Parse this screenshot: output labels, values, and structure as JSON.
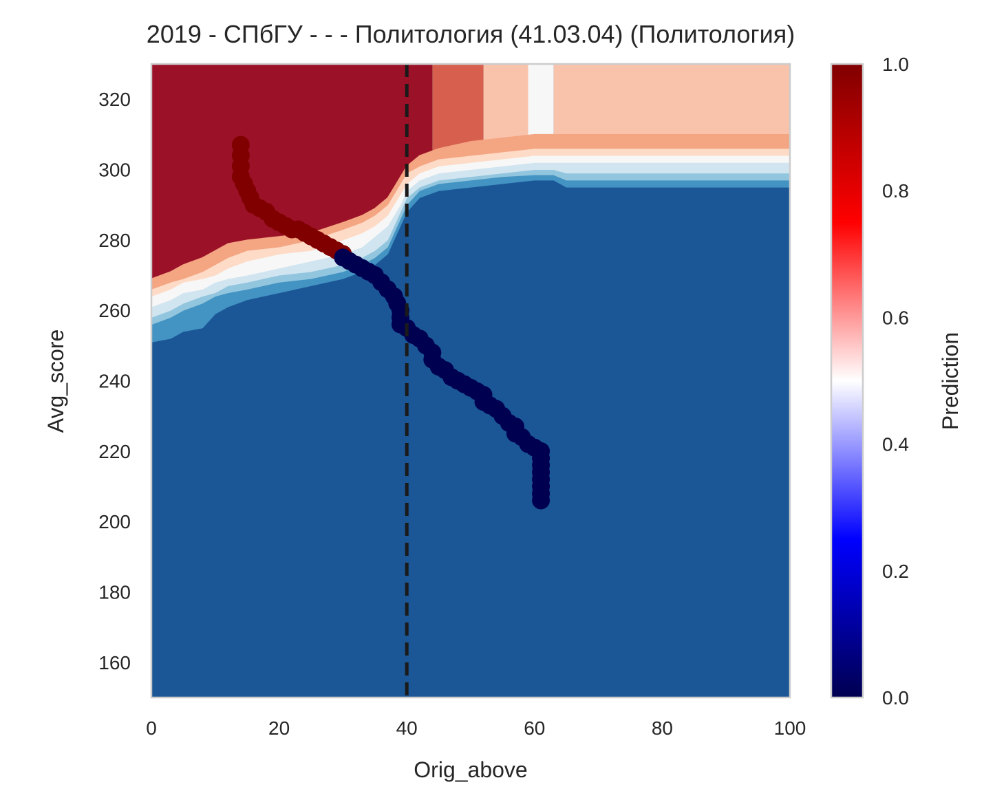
{
  "chart_data": {
    "type": "scatter",
    "title": "2019 - СПбГУ - - - Политология (41.03.04) (Политология)",
    "xlabel": "Orig_above",
    "ylabel": "Avg_score",
    "xlim": [
      0,
      100
    ],
    "ylim": [
      150,
      330
    ],
    "x_ticks": [
      "0",
      "20",
      "40",
      "60",
      "80",
      "100"
    ],
    "y_ticks": [
      "160",
      "180",
      "200",
      "220",
      "240",
      "260",
      "280",
      "300",
      "320"
    ],
    "grid": false,
    "threshold_line": {
      "x": 40,
      "style": "dashed",
      "color": "#1a1a1a"
    },
    "background": {
      "type": "contour",
      "levels": [
        0,
        0.1,
        0.2,
        0.3,
        0.4,
        0.5,
        0.6,
        0.7,
        0.8,
        0.9,
        1.0
      ],
      "boundaries": [
        {
          "color": "#4393c3",
          "points": [
            [
              0,
              251
            ],
            [
              3,
              252
            ],
            [
              5,
              254
            ],
            [
              8,
              255
            ],
            [
              10,
              259
            ],
            [
              12,
              261
            ],
            [
              15,
              263
            ],
            [
              20,
              265
            ],
            [
              25,
              267
            ],
            [
              30,
              269
            ],
            [
              33,
              271
            ],
            [
              35,
              273
            ],
            [
              37,
              276
            ],
            [
              38,
              280
            ],
            [
              39,
              284
            ],
            [
              40,
              288
            ],
            [
              42,
              292
            ],
            [
              45,
              294
            ],
            [
              50,
              295
            ],
            [
              55,
              296
            ],
            [
              60,
              297
            ],
            [
              63,
              297
            ],
            [
              65,
              295
            ],
            [
              80,
              295
            ],
            [
              100,
              295
            ]
          ]
        },
        {
          "color": "#92c5de",
          "points": [
            [
              0,
              256
            ],
            [
              3,
              258
            ],
            [
              5,
              260
            ],
            [
              8,
              262
            ],
            [
              10,
              264
            ],
            [
              12,
              265
            ],
            [
              15,
              266
            ],
            [
              20,
              268
            ],
            [
              25,
              269
            ],
            [
              30,
              271
            ],
            [
              33,
              273
            ],
            [
              35,
              275
            ],
            [
              37,
              278
            ],
            [
              38,
              282
            ],
            [
              39,
              286
            ],
            [
              40,
              290
            ],
            [
              42,
              294
            ],
            [
              45,
              296
            ],
            [
              50,
              297
            ],
            [
              55,
              298
            ],
            [
              60,
              298.5
            ],
            [
              63,
              298.5
            ],
            [
              65,
              297
            ],
            [
              80,
              297
            ],
            [
              100,
              297
            ]
          ]
        },
        {
          "color": "#d1e5f0",
          "points": [
            [
              0,
              258
            ],
            [
              3,
              260
            ],
            [
              5,
              262
            ],
            [
              8,
              264
            ],
            [
              10,
              265
            ],
            [
              12,
              267
            ],
            [
              15,
              268
            ],
            [
              20,
              270
            ],
            [
              25,
              271
            ],
            [
              30,
              273
            ],
            [
              33,
              275
            ],
            [
              35,
              277
            ],
            [
              37,
              280
            ],
            [
              38,
              284
            ],
            [
              39,
              288
            ],
            [
              40,
              292
            ],
            [
              42,
              295
            ],
            [
              45,
              297
            ],
            [
              50,
              298
            ],
            [
              55,
              299
            ],
            [
              60,
              300
            ],
            [
              63,
              300
            ],
            [
              65,
              299
            ],
            [
              80,
              299
            ],
            [
              100,
              299
            ]
          ]
        },
        {
          "color": "#f7f7f7",
          "points": [
            [
              0,
              261
            ],
            [
              3,
              263
            ],
            [
              5,
              265
            ],
            [
              8,
              266
            ],
            [
              10,
              268
            ],
            [
              12,
              269
            ],
            [
              15,
              270
            ],
            [
              20,
              272
            ],
            [
              25,
              274
            ],
            [
              30,
              276
            ],
            [
              33,
              278
            ],
            [
              35,
              281
            ],
            [
              37,
              284
            ],
            [
              38,
              287
            ],
            [
              39,
              290
            ],
            [
              40,
              294
            ],
            [
              42,
              297
            ],
            [
              45,
              299
            ],
            [
              50,
              300
            ],
            [
              55,
              301
            ],
            [
              60,
              302
            ],
            [
              63,
              302
            ],
            [
              65,
              302
            ],
            [
              80,
              302
            ],
            [
              100,
              302
            ]
          ]
        },
        {
          "color": "#fddbc7",
          "points": [
            [
              0,
              264
            ],
            [
              3,
              266
            ],
            [
              5,
              268
            ],
            [
              8,
              269
            ],
            [
              10,
              270
            ],
            [
              12,
              272
            ],
            [
              15,
              274
            ],
            [
              20,
              276
            ],
            [
              25,
              277
            ],
            [
              30,
              280
            ],
            [
              33,
              282
            ],
            [
              35,
              284
            ],
            [
              37,
              287
            ],
            [
              38,
              290
            ],
            [
              39,
              293
            ],
            [
              40,
              296
            ],
            [
              42,
              299
            ],
            [
              45,
              301
            ],
            [
              50,
              302
            ],
            [
              55,
              303
            ],
            [
              60,
              304
            ],
            [
              63,
              304
            ],
            [
              65,
              304
            ],
            [
              80,
              304
            ],
            [
              100,
              304
            ]
          ]
        },
        {
          "color": "#f4a582",
          "points": [
            [
              0,
              266
            ],
            [
              3,
              268
            ],
            [
              5,
              269
            ],
            [
              8,
              271
            ],
            [
              10,
              273
            ],
            [
              12,
              275
            ],
            [
              15,
              277
            ],
            [
              20,
              278
            ],
            [
              25,
              280
            ],
            [
              30,
              283
            ],
            [
              33,
              285
            ],
            [
              35,
              287
            ],
            [
              37,
              290
            ],
            [
              38,
              293
            ],
            [
              39,
              296
            ],
            [
              40,
              299
            ],
            [
              42,
              301
            ],
            [
              45,
              303
            ],
            [
              50,
              304
            ],
            [
              55,
              305
            ],
            [
              60,
              306
            ],
            [
              63,
              306
            ],
            [
              65,
              306
            ],
            [
              80,
              306
            ],
            [
              100,
              306
            ]
          ]
        },
        {
          "color": "#d6604d",
          "points": [
            [
              0,
              269
            ],
            [
              3,
              271
            ],
            [
              5,
              273
            ],
            [
              8,
              275
            ],
            [
              10,
              277
            ],
            [
              12,
              279
            ],
            [
              15,
              280
            ],
            [
              20,
              281
            ],
            [
              25,
              282
            ],
            [
              30,
              285
            ],
            [
              33,
              287
            ],
            [
              35,
              289
            ],
            [
              37,
              292
            ],
            [
              38,
              295
            ],
            [
              39,
              298
            ],
            [
              40,
              301
            ],
            [
              42,
              304
            ],
            [
              45,
              306
            ],
            [
              50,
              308
            ],
            [
              55,
              309
            ],
            [
              60,
              310
            ],
            [
              63,
              310
            ],
            [
              65,
              310
            ],
            [
              80,
              310
            ],
            [
              100,
              310
            ]
          ]
        }
      ],
      "upper_bands": [
        {
          "color": "#9b1127",
          "x_range": [
            0,
            44
          ]
        },
        {
          "color": "#d6604d",
          "x_range": [
            44,
            52
          ]
        },
        {
          "color": "#f9c3ab",
          "x_range": [
            52,
            59
          ]
        },
        {
          "color": "#f7f7f7",
          "x_range": [
            59,
            63
          ]
        },
        {
          "color": "#f9c3ab",
          "x_range": [
            63,
            100
          ]
        }
      ],
      "lower_color": "#1b5796"
    },
    "series": [
      {
        "color": "#800000",
        "points": [
          [
            14,
            307
          ],
          [
            14,
            304
          ],
          [
            14,
            301
          ],
          [
            14,
            298
          ],
          [
            14.5,
            296
          ],
          [
            15,
            294
          ],
          [
            15.5,
            292
          ],
          [
            16,
            290
          ],
          [
            17,
            289
          ],
          [
            18,
            288
          ],
          [
            19,
            286
          ],
          [
            20,
            285
          ],
          [
            21,
            284
          ],
          [
            22,
            283
          ],
          [
            23,
            283
          ],
          [
            24,
            282
          ],
          [
            25,
            281
          ],
          [
            26,
            280
          ],
          [
            27,
            279
          ],
          [
            28,
            278
          ],
          [
            29,
            277
          ],
          [
            30,
            276
          ]
        ]
      },
      {
        "color": "#000050",
        "points": [
          [
            30,
            275
          ],
          [
            31,
            274
          ],
          [
            32,
            273
          ],
          [
            33,
            272
          ],
          [
            34,
            271
          ],
          [
            35,
            270
          ],
          [
            36,
            268
          ],
          [
            37,
            266
          ],
          [
            38,
            264
          ],
          [
            38.5,
            262
          ],
          [
            39,
            260
          ],
          [
            39,
            258
          ],
          [
            39,
            256
          ],
          [
            40,
            255
          ],
          [
            41,
            253
          ],
          [
            42,
            252
          ],
          [
            43,
            250
          ],
          [
            44,
            248
          ],
          [
            44,
            246
          ],
          [
            45,
            244
          ],
          [
            46,
            243
          ],
          [
            47,
            241
          ],
          [
            48,
            240
          ],
          [
            49,
            239
          ],
          [
            50,
            238
          ],
          [
            51,
            237
          ],
          [
            52,
            236
          ],
          [
            52,
            234
          ],
          [
            53,
            233
          ],
          [
            54,
            232
          ],
          [
            55,
            230
          ],
          [
            56,
            228
          ],
          [
            57,
            227
          ],
          [
            57,
            225
          ],
          [
            58,
            224
          ],
          [
            59,
            222
          ],
          [
            60,
            221
          ],
          [
            61,
            220
          ],
          [
            61,
            218
          ],
          [
            61,
            216
          ],
          [
            61,
            214
          ],
          [
            61,
            212
          ],
          [
            61,
            210
          ],
          [
            61,
            208
          ],
          [
            61,
            206
          ]
        ]
      }
    ],
    "colorbar": {
      "label": "Prediction",
      "min": 0,
      "max": 1,
      "ticks": [
        "0.0",
        "0.2",
        "0.4",
        "0.6",
        "0.8",
        "1.0"
      ],
      "colormap": [
        "#000050",
        "#0000ff",
        "#ffffff",
        "#ff0000",
        "#800000"
      ]
    }
  }
}
